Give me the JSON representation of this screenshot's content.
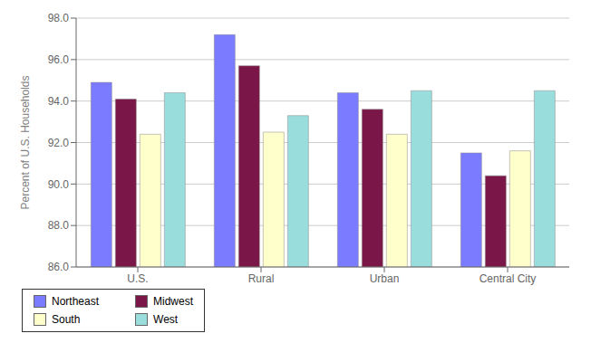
{
  "chart_data": {
    "type": "bar",
    "ylabel": "Percent of U.S. Households",
    "categories": [
      "U.S.",
      "Rural",
      "Urban",
      "Central City"
    ],
    "series": [
      {
        "name": "Northeast",
        "color": "#7b7bff",
        "values": [
          94.9,
          97.2,
          94.4,
          91.5
        ]
      },
      {
        "name": "Midwest",
        "color": "#7b1648",
        "values": [
          94.1,
          95.7,
          93.6,
          90.4
        ]
      },
      {
        "name": "South",
        "color": "#ffffcc",
        "values": [
          92.4,
          92.5,
          92.4,
          91.6
        ]
      },
      {
        "name": "West",
        "color": "#99dddd",
        "values": [
          94.4,
          93.3,
          94.5,
          94.5
        ]
      }
    ],
    "ylim": [
      86.0,
      98.0
    ],
    "yticks": [
      86.0,
      88.0,
      90.0,
      92.0,
      94.0,
      96.0,
      98.0
    ],
    "grid": true,
    "legend": "bottom"
  }
}
